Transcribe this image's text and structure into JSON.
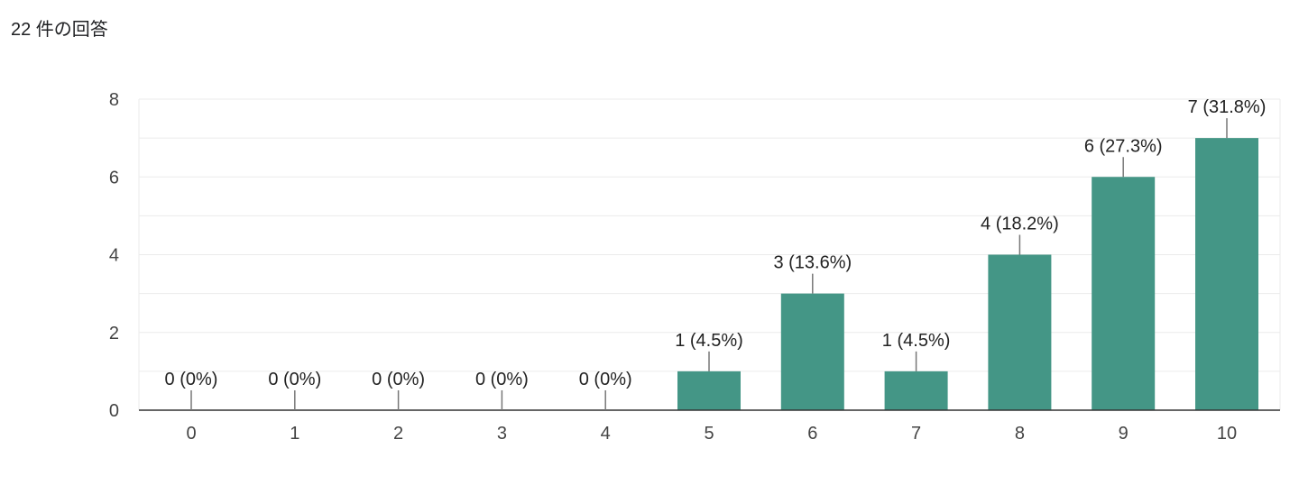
{
  "header": {
    "response_count": "22 件の回答"
  },
  "chart_data": {
    "type": "bar",
    "categories": [
      "0",
      "1",
      "2",
      "3",
      "4",
      "5",
      "6",
      "7",
      "8",
      "9",
      "10"
    ],
    "values": [
      0,
      0,
      0,
      0,
      0,
      1,
      3,
      1,
      4,
      6,
      7
    ],
    "data_labels": [
      "0 (0%)",
      "0 (0%)",
      "0 (0%)",
      "0 (0%)",
      "0 (0%)",
      "1 (4.5%)",
      "3 (13.6%)",
      "1 (4.5%)",
      "4 (18.2%)",
      "6 (27.3%)",
      "7 (31.8%)"
    ],
    "y_ticks": [
      0,
      2,
      4,
      6,
      8
    ],
    "ylim": [
      0,
      8
    ],
    "grid": true,
    "legend": "none",
    "title": "",
    "xlabel": "",
    "ylabel": "",
    "colors": {
      "bar": "#449686",
      "grid": "#ebebeb",
      "axis": "#333333",
      "leader": "#777777"
    }
  }
}
